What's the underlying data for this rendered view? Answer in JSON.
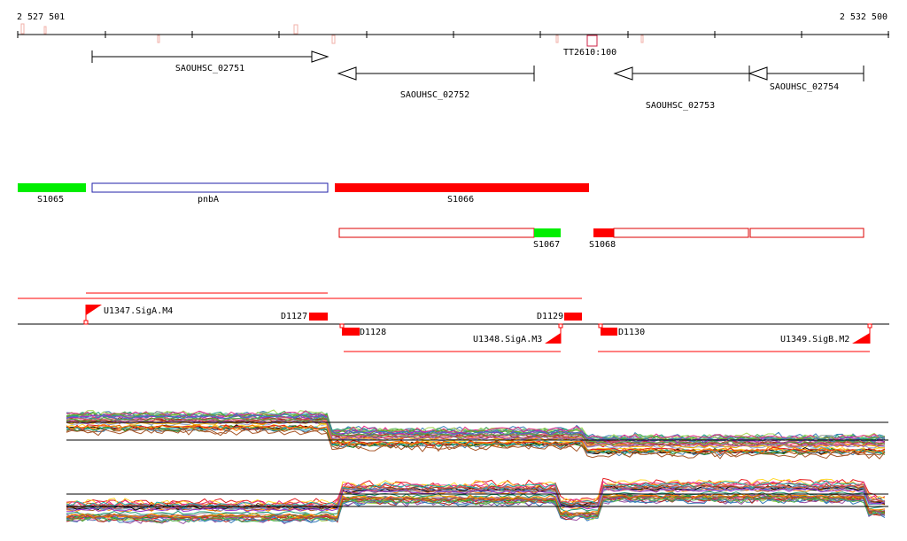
{
  "coordinates": {
    "start_label": "2 527 501",
    "end_label": "2 532 500"
  },
  "terminator": {
    "label": "TT2610:100"
  },
  "genes": [
    {
      "label": "SAOUHSC_02751",
      "strand": "+"
    },
    {
      "label": "SAOUHSC_02752",
      "strand": "-"
    },
    {
      "label": "SAOUHSC_02753",
      "strand": "-"
    },
    {
      "label": "SAOUHSC_02754",
      "strand": "-"
    }
  ],
  "segments": [
    {
      "label": "S1065",
      "color": "#00ee00"
    },
    {
      "label": "pnbA",
      "color": "#2222aa"
    },
    {
      "label": "S1066",
      "color": "#ff0000"
    },
    {
      "label": "S1067",
      "color": "#00ee00"
    },
    {
      "label": "S1068",
      "color": "#ff0000"
    }
  ],
  "promoters": [
    {
      "label": "U1347.SigA.M4"
    },
    {
      "label": "U1348.SigA.M3"
    },
    {
      "label": "U1349.SigB.M2"
    }
  ],
  "downshifts": [
    {
      "label": "D1127"
    },
    {
      "label": "D1128"
    },
    {
      "label": "D1129"
    },
    {
      "label": "D1130"
    }
  ],
  "colors": {
    "axis": "#000000",
    "upshift": "#ff0000",
    "segment_outline": "#dd0000",
    "terminator": "#cc2244"
  }
}
